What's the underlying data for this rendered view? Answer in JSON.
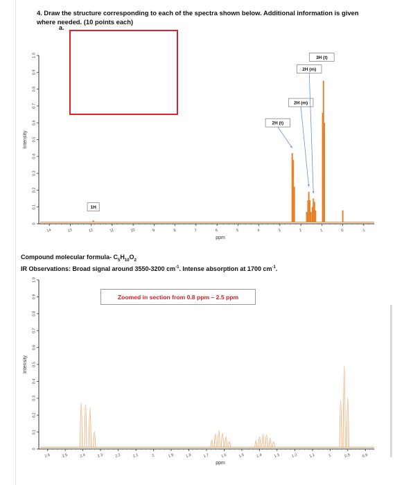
{
  "question": {
    "title": "4. Draw the structure corresponding to each of the spectra shown below. Additional information is given where needed. (10 points each)",
    "part": "a."
  },
  "formula": {
    "prefix": "Compound molecular formula- C",
    "c": "5",
    "h": "H",
    "hn": "10",
    "o": "O",
    "on": "2"
  },
  "ir": {
    "prefix": "IR Observations: Broad signal around 3550-3200 cm",
    "mid": ". Intense absorption at 1700 cm",
    "sup": "-1",
    "end": "."
  },
  "zoom_note": "Zoomed in section from 0.8 ppm – 2.5 ppm",
  "colors": {
    "spectrum1": "#e8822a",
    "spectrum2": "#f0a870",
    "answer_box": "#e0202a",
    "arrow": "#6a8fd8",
    "zoom_text": "#d8202a"
  },
  "chart_data": [
    {
      "type": "line",
      "title": "",
      "xlabel": "ppm",
      "ylabel": "Intensity",
      "x_reversed": true,
      "xlim": [
        -1.5,
        14.5
      ],
      "ylim": [
        0,
        1.0
      ],
      "x_ticks": [
        "14",
        "13",
        "12",
        "11",
        "10",
        "9",
        "8",
        "7",
        "6",
        "5",
        "4",
        "3",
        "2",
        "1",
        "0",
        "-1"
      ],
      "y_ticks": [
        "0",
        "0.1",
        "0.2",
        "0.3",
        "0.4",
        "0.5",
        "0.6",
        "0.7",
        "0.8",
        "0.9",
        "1.0"
      ],
      "peaks": [
        {
          "ppm": 11.9,
          "height": 0.02
        },
        {
          "ppm": 2.41,
          "height": 0.42
        },
        {
          "ppm": 2.36,
          "height": 0.38
        },
        {
          "ppm": 2.31,
          "height": 0.22
        },
        {
          "ppm": 1.72,
          "height": 0.07
        },
        {
          "ppm": 1.66,
          "height": 0.14
        },
        {
          "ppm": 1.62,
          "height": 0.19
        },
        {
          "ppm": 1.57,
          "height": 0.14
        },
        {
          "ppm": 1.52,
          "height": 0.07
        },
        {
          "ppm": 1.45,
          "height": 0.1
        },
        {
          "ppm": 1.4,
          "height": 0.15
        },
        {
          "ppm": 1.35,
          "height": 0.13
        },
        {
          "ppm": 1.3,
          "height": 0.08
        },
        {
          "ppm": 0.96,
          "height": 0.66
        },
        {
          "ppm": 0.92,
          "height": 0.85
        },
        {
          "ppm": 0.88,
          "height": 0.6
        },
        {
          "ppm": 0.0,
          "height": 0.08
        }
      ],
      "annotations": [
        {
          "text": "1H",
          "ppm": 11.9,
          "y": 0.1
        },
        {
          "text": "2H (t)",
          "ppm": 3.1,
          "y": 0.6,
          "arrow_ppm": 2.41,
          "arrow_y": 0.45
        },
        {
          "text": "2H (m)",
          "ppm": 2.0,
          "y": 0.72,
          "arrow_ppm": 1.62,
          "arrow_y": 0.22
        },
        {
          "text": "2H (m)",
          "ppm": 1.6,
          "y": 0.92,
          "arrow_ppm": 1.4,
          "arrow_y": 0.18
        },
        {
          "text": "3H (t)",
          "ppm": 1.0,
          "y": 0.99,
          "arrow_ppm": null,
          "arrow_y": null
        }
      ]
    },
    {
      "type": "line",
      "title": "",
      "xlabel": "ppm",
      "ylabel": "Intensity",
      "x_reversed": true,
      "xlim": [
        0.75,
        2.65
      ],
      "ylim": [
        0,
        1.0
      ],
      "x_ticks": [
        "2.6",
        "2.5",
        "2.4",
        "2.3",
        "2.2",
        "2.1",
        "2",
        "1.9",
        "1.8",
        "1.7",
        "1.6",
        "1.5",
        "1.4",
        "1.3",
        "1.2",
        "1.1",
        "1",
        "0.9",
        "0.8"
      ],
      "y_ticks": [
        "0",
        "0.1",
        "0.2",
        "0.3",
        "0.4",
        "0.5",
        "0.6",
        "0.7",
        "0.8",
        "0.9",
        "1.0"
      ],
      "peaks": [
        {
          "ppm": 2.41,
          "height": 0.52
        },
        {
          "ppm": 2.385,
          "height": 0.5
        },
        {
          "ppm": 2.36,
          "height": 0.46
        },
        {
          "ppm": 2.335,
          "height": 0.18
        },
        {
          "ppm": 1.67,
          "height": 0.08
        },
        {
          "ppm": 1.65,
          "height": 0.15
        },
        {
          "ppm": 1.63,
          "height": 0.19
        },
        {
          "ppm": 1.61,
          "height": 0.16
        },
        {
          "ppm": 1.59,
          "height": 0.12
        },
        {
          "ppm": 1.57,
          "height": 0.06
        },
        {
          "ppm": 1.42,
          "height": 0.07
        },
        {
          "ppm": 1.4,
          "height": 0.12
        },
        {
          "ppm": 1.38,
          "height": 0.15
        },
        {
          "ppm": 1.36,
          "height": 0.14
        },
        {
          "ppm": 1.34,
          "height": 0.1
        },
        {
          "ppm": 1.32,
          "height": 0.06
        },
        {
          "ppm": 0.94,
          "height": 0.55
        },
        {
          "ppm": 0.92,
          "height": 0.96
        },
        {
          "ppm": 0.9,
          "height": 0.58
        }
      ]
    }
  ]
}
